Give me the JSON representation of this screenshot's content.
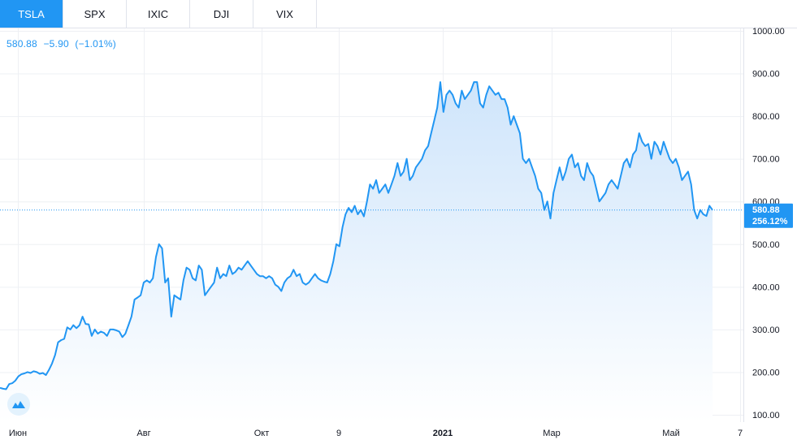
{
  "tabs": [
    {
      "label": "TSLA",
      "active": true
    },
    {
      "label": "SPX",
      "active": false
    },
    {
      "label": "IXIC",
      "active": false
    },
    {
      "label": "DJI",
      "active": false
    },
    {
      "label": "VIX",
      "active": false
    }
  ],
  "quote": {
    "price": "580.88",
    "change": "−5.90",
    "change_pct": "(−1.01%)"
  },
  "price_tag": {
    "price": "580.88",
    "pct": "256.12%"
  },
  "colors": {
    "accent": "#2196f3",
    "line": "#2196f3",
    "fill_top": "#cfe5fb",
    "fill_bottom": "#ffffff",
    "grid": "#eef0f4"
  },
  "chart_data": {
    "type": "area",
    "series": [
      {
        "values": [
          163,
          161,
          160,
          172,
          174,
          180,
          190,
          195,
          197,
          200,
          198,
          202,
          200,
          196,
          198,
          193,
          205,
          220,
          240,
          270,
          275,
          278,
          305,
          300,
          310,
          303,
          310,
          330,
          313,
          312,
          285,
          300,
          290,
          295,
          292,
          285,
          300,
          300,
          298,
          295,
          282,
          290,
          310,
          330,
          370,
          375,
          380,
          410,
          415,
          410,
          420,
          470,
          500,
          490,
          410,
          420,
          330,
          380,
          375,
          370,
          415,
          445,
          440,
          420,
          415,
          450,
          440,
          380,
          390,
          400,
          410,
          445,
          420,
          430,
          425,
          450,
          430,
          435,
          445,
          440,
          450,
          460,
          450,
          440,
          430,
          425,
          425,
          420,
          425,
          420,
          405,
          400,
          390,
          410,
          420,
          425,
          440,
          425,
          430,
          410,
          405,
          410,
          420,
          430,
          420,
          415,
          412,
          410,
          430,
          460,
          500,
          495,
          540,
          570,
          585,
          575,
          590,
          570,
          580,
          565,
          600,
          640,
          630,
          650,
          620,
          630,
          640,
          620,
          640,
          660,
          690,
          660,
          670,
          700,
          650,
          660,
          680,
          690,
          700,
          720,
          730,
          760,
          790,
          820,
          880,
          810,
          850,
          860,
          850,
          830,
          820,
          860,
          840,
          850,
          860,
          880,
          880,
          830,
          820,
          850,
          870,
          860,
          850,
          855,
          840,
          840,
          820,
          780,
          800,
          780,
          760,
          700,
          690,
          700,
          680,
          660,
          630,
          620,
          580,
          600,
          560,
          620,
          650,
          680,
          650,
          670,
          700,
          710,
          680,
          690,
          660,
          650,
          690,
          670,
          660,
          630,
          600,
          610,
          620,
          640,
          650,
          640,
          630,
          660,
          690,
          700,
          680,
          710,
          720,
          760,
          740,
          730,
          735,
          700,
          740,
          730,
          710,
          740,
          720,
          700,
          690,
          700,
          680,
          650,
          660,
          670,
          640,
          580,
          560,
          580,
          570,
          566,
          590,
          580
        ],
        "name": ""
      }
    ],
    "x_tick_labels": [
      "Июн",
      "Авг",
      "Окт",
      "9",
      "2021",
      "Мар",
      "Май",
      "7"
    ],
    "y_tick_labels": [
      "100.00",
      "200.00",
      "300.00",
      "400.00",
      "500.00",
      "600.00",
      "700.00",
      "800.00",
      "900.00",
      "1000.00"
    ],
    "ylim": [
      100,
      1000
    ],
    "last_value": 580.88,
    "grid": true,
    "title": "",
    "xlabel": "",
    "ylabel": ""
  }
}
